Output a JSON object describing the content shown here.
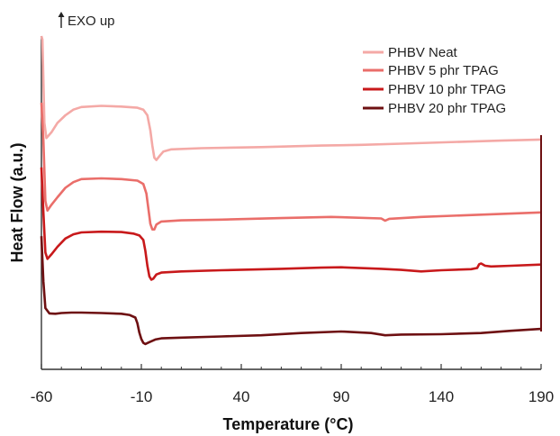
{
  "chart_data": {
    "type": "line",
    "annotation": "EXO up",
    "xlabel": "Temperature (°C)",
    "ylabel": "Heat Flow (a.u.)",
    "xlim": [
      -60,
      190
    ],
    "x_ticks": [
      -60,
      -10,
      40,
      90,
      140,
      190
    ],
    "y_ticks_shown": false,
    "legend_position": "top-right",
    "series": [
      {
        "name": "PHBV Neat",
        "color": "#f4a9a6",
        "points": [
          [
            -60,
            44
          ],
          [
            -59.5,
            30
          ],
          [
            -58.5,
            8
          ],
          [
            -57.5,
            4
          ],
          [
            -55,
            5.5
          ],
          [
            -52,
            8
          ],
          [
            -48,
            10
          ],
          [
            -44,
            11.5
          ],
          [
            -40,
            12.2
          ],
          [
            -30,
            12.5
          ],
          [
            -20,
            12.3
          ],
          [
            -12,
            12
          ],
          [
            -9,
            11.5
          ],
          [
            -7,
            10
          ],
          [
            -5.5,
            6
          ],
          [
            -4.5,
            2
          ],
          [
            -3.5,
            -1.2
          ],
          [
            -2.5,
            -1.8
          ],
          [
            -1,
            -0.8
          ],
          [
            1,
            0.4
          ],
          [
            5,
            1
          ],
          [
            20,
            1.3
          ],
          [
            50,
            1.6
          ],
          [
            80,
            2
          ],
          [
            100,
            2.2
          ],
          [
            120,
            2.5
          ],
          [
            150,
            3
          ],
          [
            170,
            3.3
          ],
          [
            190,
            3.6
          ]
        ]
      },
      {
        "name": "PHBV 5 phr TPAG",
        "color": "#ea6e6a",
        "points": [
          [
            -60,
            30
          ],
          [
            -59,
            20
          ],
          [
            -58,
            4
          ],
          [
            -57,
            1.5
          ],
          [
            -55,
            3
          ],
          [
            -52,
            5
          ],
          [
            -48,
            7.5
          ],
          [
            -44,
            9
          ],
          [
            -40,
            9.8
          ],
          [
            -30,
            10
          ],
          [
            -20,
            9.8
          ],
          [
            -12,
            9.4
          ],
          [
            -9,
            8.5
          ],
          [
            -7.5,
            6
          ],
          [
            -6.5,
            2
          ],
          [
            -5.5,
            -2
          ],
          [
            -4.5,
            -3.5
          ],
          [
            -3.5,
            -3.5
          ],
          [
            -2.5,
            -2.2
          ],
          [
            0,
            -1.4
          ],
          [
            10,
            -1.1
          ],
          [
            30,
            -0.9
          ],
          [
            60,
            -0.5
          ],
          [
            85,
            -0.2
          ],
          [
            110,
            -0.6
          ],
          [
            112,
            -1.2
          ],
          [
            114,
            -0.7
          ],
          [
            130,
            -0.2
          ],
          [
            160,
            0.4
          ],
          [
            190,
            1
          ]
        ]
      },
      {
        "name": "PHBV 10 phr TPAG",
        "color": "#c8191b",
        "points": [
          [
            -60,
            26
          ],
          [
            -59,
            14
          ],
          [
            -58,
            3.5
          ],
          [
            -57,
            1.8
          ],
          [
            -55,
            3
          ],
          [
            -52,
            5
          ],
          [
            -48,
            7.2
          ],
          [
            -44,
            8.3
          ],
          [
            -40,
            8.8
          ],
          [
            -30,
            9
          ],
          [
            -20,
            8.9
          ],
          [
            -14,
            8.5
          ],
          [
            -11,
            8
          ],
          [
            -9,
            6.8
          ],
          [
            -8,
            4
          ],
          [
            -7,
            0
          ],
          [
            -6,
            -2.8
          ],
          [
            -5,
            -3.7
          ],
          [
            -4,
            -3.4
          ],
          [
            -2.5,
            -2.3
          ],
          [
            0,
            -1.8
          ],
          [
            10,
            -1.5
          ],
          [
            30,
            -1.2
          ],
          [
            60,
            -0.8
          ],
          [
            80,
            -0.5
          ],
          [
            90,
            -0.4
          ],
          [
            110,
            -0.8
          ],
          [
            120,
            -1.1
          ],
          [
            130,
            -1.5
          ],
          [
            140,
            -1.2
          ],
          [
            155,
            -0.9
          ],
          [
            158,
            -0.6
          ],
          [
            159,
            0.4
          ],
          [
            160,
            0.6
          ],
          [
            162,
            0
          ],
          [
            165,
            -0.2
          ],
          [
            175,
            0
          ],
          [
            190,
            0.3
          ]
        ]
      },
      {
        "name": "PHBV 20 phr TPAG",
        "color": "#6e1012",
        "points": [
          [
            -60,
            24
          ],
          [
            -59,
            12
          ],
          [
            -58,
            5
          ],
          [
            -56,
            3.6
          ],
          [
            -53,
            3.5
          ],
          [
            -50,
            3.7
          ],
          [
            -45,
            3.8
          ],
          [
            -40,
            3.8
          ],
          [
            -30,
            3.7
          ],
          [
            -20,
            3.5
          ],
          [
            -16,
            3.2
          ],
          [
            -13,
            2.5
          ],
          [
            -12,
            1
          ],
          [
            -11,
            -1.5
          ],
          [
            -10,
            -3.2
          ],
          [
            -9,
            -4.2
          ],
          [
            -8,
            -4.5
          ],
          [
            -6,
            -4
          ],
          [
            -3,
            -3.3
          ],
          [
            0,
            -3
          ],
          [
            10,
            -2.8
          ],
          [
            30,
            -2.5
          ],
          [
            50,
            -2.2
          ],
          [
            70,
            -1.6
          ],
          [
            90,
            -1.2
          ],
          [
            105,
            -1.6
          ],
          [
            112,
            -2.2
          ],
          [
            120,
            -2
          ],
          [
            140,
            -1.9
          ],
          [
            160,
            -1.6
          ],
          [
            175,
            -1
          ],
          [
            190,
            -0.5
          ]
        ]
      }
    ]
  }
}
